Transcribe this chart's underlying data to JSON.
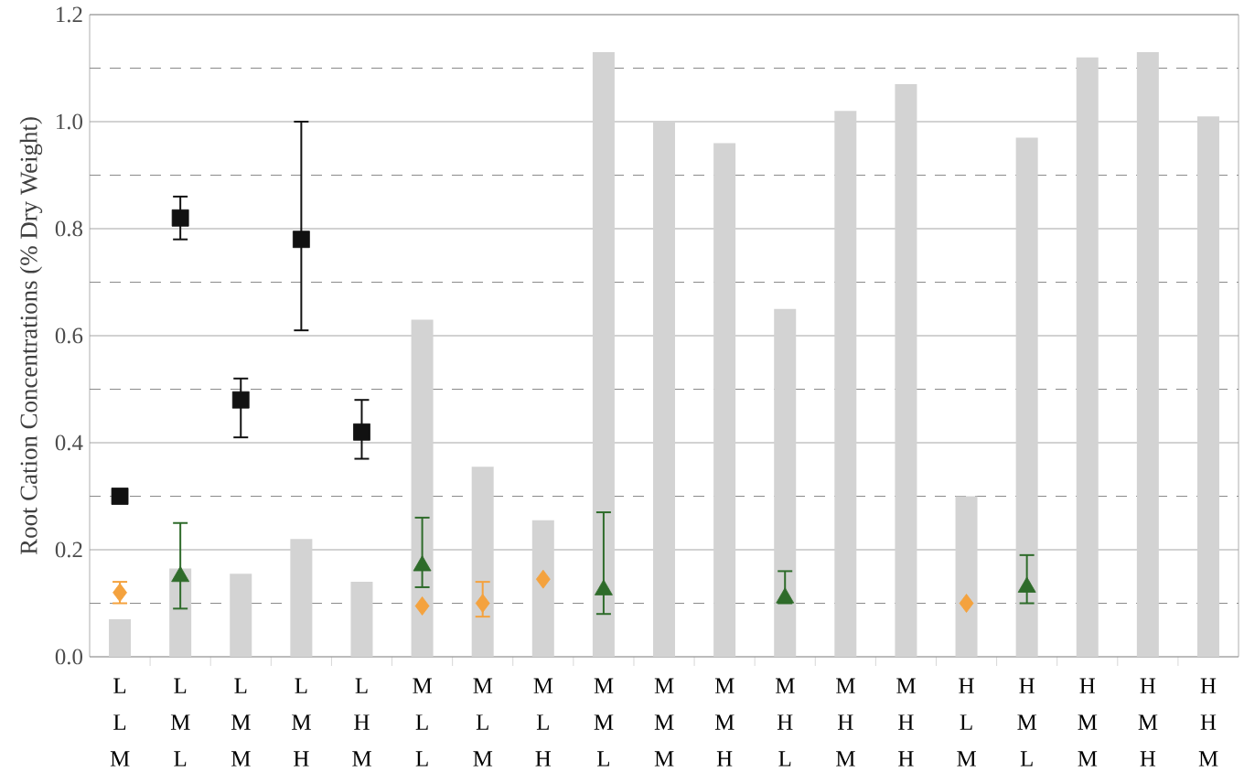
{
  "chart_data": {
    "type": "bar",
    "ylabel": "Root Cation Concentrations (% Dry Weight)",
    "categories": [
      "L L M",
      "L M L",
      "L M M",
      "L M H",
      "L H M",
      "M L L",
      "M L M",
      "M L H",
      "M M L",
      "M M M",
      "M M H",
      "M H L",
      "M H M",
      "M H H",
      "H L M",
      "H M L",
      "H M M",
      "H M H",
      "H H M"
    ],
    "ylim": [
      0,
      1.2
    ],
    "yticks": [
      {
        "value": 0,
        "label": "0.0"
      },
      0.2,
      0.4,
      0.6,
      0.8,
      {
        "value": 1.0,
        "label": "1.0"
      },
      1.2
    ],
    "grid": "y",
    "ref_lines": [
      {
        "axis": "y",
        "value": 0.1,
        "line_style": "dashed",
        "color": "#8a8a8a"
      },
      {
        "axis": "y",
        "value": 0.3,
        "line_style": "dashed",
        "color": "#8a8a8a"
      },
      {
        "axis": "y",
        "value": 0.5,
        "line_style": "dashed",
        "color": "#8a8a8a"
      },
      {
        "axis": "y",
        "value": 0.7,
        "line_style": "dashed",
        "color": "#8a8a8a"
      },
      {
        "axis": "y",
        "value": 0.9,
        "line_style": "dashed",
        "color": "#8a8a8a"
      },
      {
        "axis": "y",
        "value": 1.1,
        "line_style": "dashed",
        "color": "#8a8a8a"
      }
    ],
    "series": [
      {
        "color": "#d3d3d3",
        "values": [
          0.07,
          0.165,
          0.155,
          0.22,
          0.14,
          0.63,
          0.355,
          0.255,
          1.13,
          1.0,
          0.96,
          0.65,
          1.02,
          1.07,
          0.3,
          0.97,
          1.12,
          1.13,
          1.01
        ]
      },
      {
        "type": "scatter",
        "marker": "square",
        "color": "#111111",
        "values": [
          0.3,
          0.82,
          0.48,
          0.78,
          0.42,
          null,
          null,
          null,
          null,
          null,
          null,
          null,
          null,
          null,
          null,
          null,
          null,
          null,
          null
        ],
        "errors": [
          null,
          [
            0.78,
            0.86
          ],
          [
            0.41,
            0.52
          ],
          [
            0.61,
            1.0
          ],
          [
            0.37,
            0.48
          ],
          null,
          null,
          null,
          null,
          null,
          null,
          null,
          null,
          null,
          null,
          null,
          null,
          null,
          null
        ]
      },
      {
        "type": "scatter",
        "marker": "triangle",
        "color": "#2e6b2a",
        "values": [
          null,
          0.15,
          null,
          null,
          null,
          0.17,
          null,
          null,
          0.125,
          null,
          null,
          0.11,
          null,
          null,
          null,
          0.13,
          null,
          null,
          null
        ],
        "errors": [
          null,
          [
            0.09,
            0.25
          ],
          null,
          null,
          null,
          [
            0.13,
            0.26
          ],
          null,
          null,
          [
            0.08,
            0.27
          ],
          null,
          null,
          [
            0.1,
            0.16
          ],
          null,
          null,
          null,
          [
            0.1,
            0.19
          ],
          null,
          null,
          null
        ]
      },
      {
        "type": "scatter",
        "marker": "diamond",
        "color": "#f4a23e",
        "values": [
          0.12,
          null,
          null,
          null,
          null,
          0.095,
          0.1,
          0.145,
          null,
          null,
          null,
          null,
          null,
          null,
          0.1,
          null,
          null,
          null,
          null
        ],
        "errors": [
          [
            0.1,
            0.14
          ],
          null,
          null,
          null,
          null,
          null,
          [
            0.075,
            0.14
          ],
          null,
          null,
          null,
          null,
          null,
          null,
          null,
          null,
          null,
          null,
          null,
          null
        ]
      }
    ]
  }
}
